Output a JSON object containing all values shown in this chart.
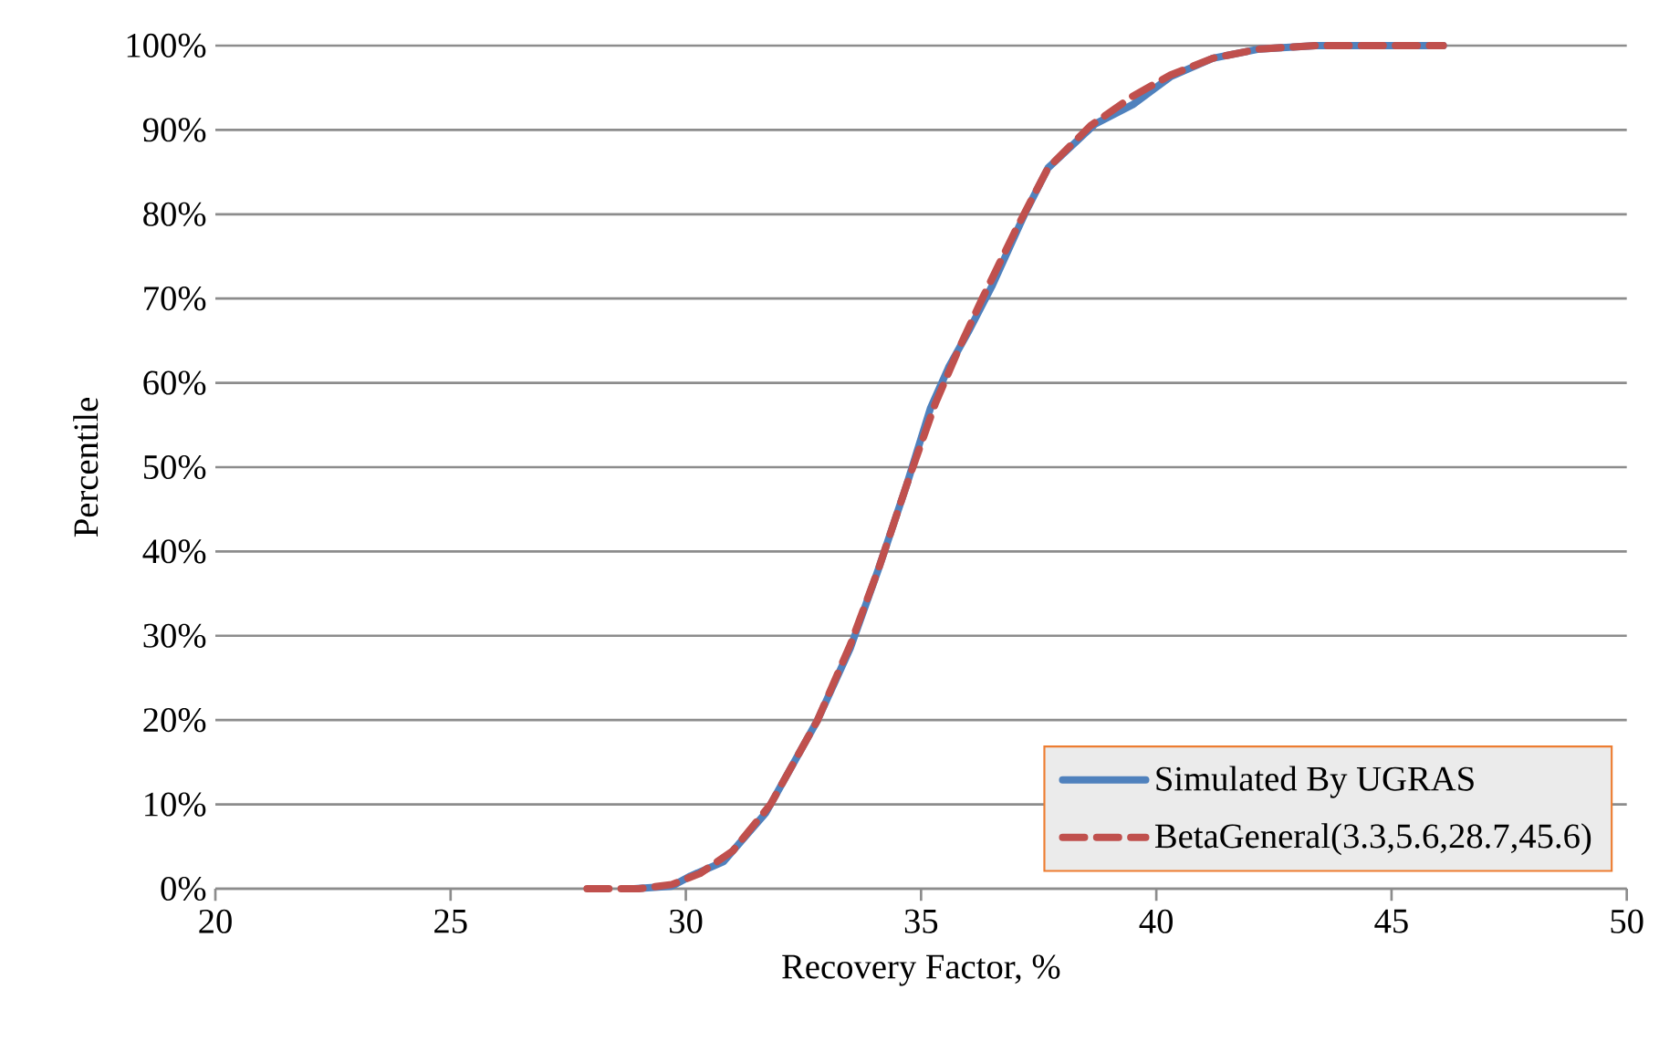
{
  "chart_data": {
    "type": "line",
    "xlabel": "Recovery Factor, %",
    "ylabel": "Percentile",
    "xlim": [
      20,
      50
    ],
    "xticks": [
      20,
      25,
      30,
      35,
      40,
      45,
      50
    ],
    "ylim": [
      0,
      100
    ],
    "yticks": [
      {
        "value": 0,
        "label": "0%"
      },
      {
        "value": 10,
        "label": "10%"
      },
      {
        "value": 20,
        "label": "20%"
      },
      {
        "value": 30,
        "label": "30%"
      },
      {
        "value": 40,
        "label": "40%"
      },
      {
        "value": 50,
        "label": "50%"
      },
      {
        "value": 60,
        "label": "60%"
      },
      {
        "value": 70,
        "label": "70%"
      },
      {
        "value": 80,
        "label": "80%"
      },
      {
        "value": 90,
        "label": "90%"
      },
      {
        "value": 100,
        "label": "100%"
      }
    ],
    "grid": "y",
    "legend": "bottom right",
    "marker": "none",
    "series": [
      {
        "name": "Simulated By UGRAS",
        "color": "#4f81bd",
        "line_style": "solid",
        "x": [
          28.9,
          29.7,
          30.1,
          30.8,
          31.7,
          32.8,
          33.5,
          34.1,
          34.7,
          35.2,
          35.6,
          36.0,
          36.5,
          37.2,
          37.7,
          38.7,
          39.5,
          40.3,
          41.2,
          42.2,
          43.4,
          46.1
        ],
        "values": [
          0,
          0.3,
          1.5,
          3.2,
          9,
          20,
          28.6,
          38,
          48,
          57,
          62,
          66,
          71.4,
          80,
          85.5,
          90.7,
          93,
          96.3,
          98.5,
          99.6,
          100,
          100
        ]
      },
      {
        "name": "BetaGeneral(3.3,5.6,28.7,45.6)",
        "color": "#c0504d",
        "line_style": "dashed",
        "x": [
          27.9,
          29.0,
          29.7,
          30.3,
          31.0,
          31.8,
          32.8,
          33.5,
          34.1,
          34.7,
          35.3,
          35.8,
          36.3,
          37.0,
          37.7,
          38.6,
          39.5,
          40.3,
          41.2,
          42.2,
          43.4,
          46.1
        ],
        "values": [
          0,
          0,
          0.5,
          1.8,
          4.5,
          10,
          20,
          29,
          38,
          48,
          57.5,
          64,
          70,
          78,
          85.5,
          90.5,
          94,
          96.5,
          98.5,
          99.6,
          100,
          100
        ]
      }
    ]
  }
}
